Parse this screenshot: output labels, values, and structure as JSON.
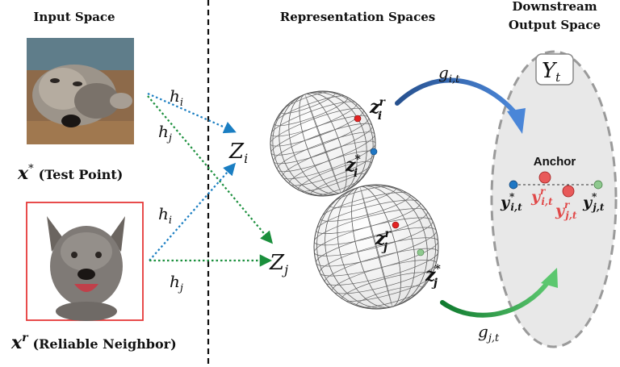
{
  "headers": {
    "input_space": "Input Space",
    "representation_spaces": "Representation Spaces",
    "downstream_line1": "Downstream",
    "downstream_line2": "Output Space"
  },
  "inputs": {
    "test_point": {
      "symbol": "x",
      "superscript": "*",
      "label": "(Test Point)"
    },
    "reliable_neighbor": {
      "symbol": "x",
      "superscript": "r",
      "label": "(Reliable Neighbor)"
    }
  },
  "mappings": {
    "encoder_i": "h",
    "encoder_i_sub": "i",
    "encoder_j": "h",
    "encoder_j_sub": "j",
    "head_i": "g",
    "head_i_sub": "i,t",
    "head_j": "g",
    "head_j_sub": "j,t"
  },
  "spaces": {
    "z_i": {
      "symbol": "Z",
      "sub": "i"
    },
    "z_j": {
      "symbol": "Z",
      "sub": "j"
    },
    "y_t": {
      "symbol": "Y",
      "sub": "t"
    }
  },
  "points": {
    "zi_r": {
      "symbol": "z",
      "sub": "i",
      "sup": "r"
    },
    "zi_s": {
      "symbol": "z",
      "sub": "i",
      "sup": "*"
    },
    "zj_r": {
      "symbol": "z",
      "sub": "j",
      "sup": "r"
    },
    "zj_s": {
      "symbol": "z",
      "sub": "j",
      "sup": "*"
    },
    "yi_s": {
      "symbol": "y",
      "sub": "i,t",
      "sup": "*"
    },
    "yi_r": {
      "symbol": "y",
      "sub": "i,t",
      "sup": "r"
    },
    "yj_r": {
      "symbol": "y",
      "sub": "j,t",
      "sup": "r"
    },
    "yj_s": {
      "symbol": "y",
      "sub": "j,t",
      "sup": "*"
    }
  },
  "anchor_label": "Anchor",
  "colors": {
    "red_point": "#e32323",
    "blue_point": "#1f77c4",
    "green_point": "#8fc98f",
    "blue_arrow": "#2f6fc0",
    "green_arrow": "#1e9a3e",
    "dotted_blue": "#1a7ec2",
    "dotted_green": "#1a8f3c",
    "red_label": "#e04848",
    "ellipse_fill": "#e8e8e8",
    "ellipse_stroke": "#9a9a9a"
  }
}
